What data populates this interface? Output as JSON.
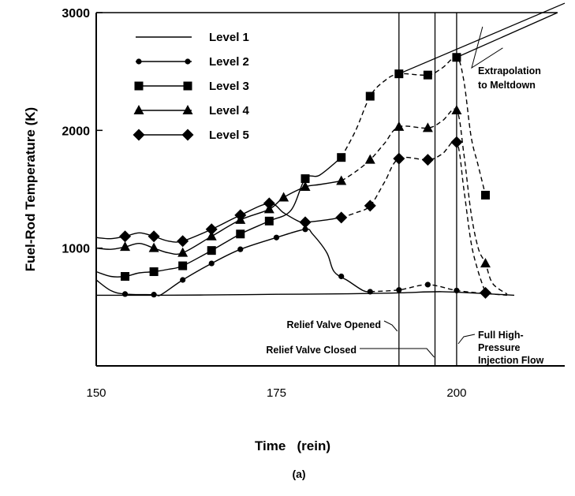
{
  "chart_data": {
    "type": "line",
    "xlabel": "Time   (rein)",
    "ylabel": "Fuel-Rod Temperature (K)",
    "caption": "(a)",
    "xlim": [
      150,
      215
    ],
    "ylim": [
      0,
      3000
    ],
    "xticks": [
      150,
      175,
      200
    ],
    "yticks": [
      1000,
      2000,
      3000
    ],
    "legend_position": "top-left",
    "grid": false,
    "series": [
      {
        "name": "Level 1",
        "marker": "none",
        "solid": [
          [
            150,
            600
          ],
          [
            158,
            600
          ],
          [
            165,
            602
          ],
          [
            175,
            608
          ],
          [
            185,
            612
          ],
          [
            192,
            620
          ],
          [
            198,
            630
          ],
          [
            205,
            610
          ],
          [
            208,
            600
          ]
        ],
        "dashed": []
      },
      {
        "name": "Level 2",
        "marker": "circle",
        "solid": [
          [
            150,
            730
          ],
          [
            152,
            640
          ],
          [
            154,
            610
          ],
          [
            158,
            605
          ],
          [
            159,
            605
          ],
          [
            162,
            730
          ],
          [
            166,
            870
          ],
          [
            170,
            990
          ],
          [
            175,
            1090
          ],
          [
            179,
            1160
          ],
          [
            180,
            1120
          ],
          [
            182,
            960
          ],
          [
            183,
            800
          ],
          [
            185,
            720
          ],
          [
            187,
            640
          ],
          [
            188,
            630
          ]
        ],
        "dashed": [
          [
            188,
            630
          ],
          [
            192,
            645
          ],
          [
            196,
            690
          ],
          [
            200,
            640
          ],
          [
            204,
            615
          ],
          [
            207,
            600
          ]
        ],
        "markers": [
          [
            154,
            610
          ],
          [
            158,
            605
          ],
          [
            162,
            730
          ],
          [
            166,
            870
          ],
          [
            170,
            990
          ],
          [
            175,
            1090
          ],
          [
            179,
            1160
          ],
          [
            184,
            760
          ],
          [
            188,
            630
          ],
          [
            192,
            645
          ],
          [
            196,
            690
          ],
          [
            200,
            640
          ],
          [
            204,
            615
          ]
        ]
      },
      {
        "name": "Level 3",
        "marker": "square",
        "solid": [
          [
            150,
            800
          ],
          [
            152,
            760
          ],
          [
            154,
            760
          ],
          [
            156,
            790
          ],
          [
            158,
            800
          ],
          [
            160,
            820
          ],
          [
            162,
            850
          ],
          [
            166,
            980
          ],
          [
            170,
            1120
          ],
          [
            174,
            1230
          ],
          [
            177,
            1320
          ],
          [
            179,
            1590
          ],
          [
            181,
            1620
          ],
          [
            184,
            1770
          ]
        ],
        "dashed": [
          [
            184,
            1770
          ],
          [
            186,
            2000
          ],
          [
            188,
            2290
          ],
          [
            190,
            2420
          ],
          [
            192,
            2480
          ],
          [
            196,
            2470
          ],
          [
            198,
            2530
          ],
          [
            200,
            2620
          ],
          [
            201,
            2420
          ],
          [
            202,
            1950
          ],
          [
            203,
            1700
          ],
          [
            204,
            1450
          ]
        ],
        "markers": [
          [
            154,
            760
          ],
          [
            158,
            800
          ],
          [
            162,
            850
          ],
          [
            166,
            980
          ],
          [
            170,
            1120
          ],
          [
            174,
            1230
          ],
          [
            179,
            1590
          ],
          [
            184,
            1770
          ],
          [
            188,
            2290
          ],
          [
            192,
            2480
          ],
          [
            196,
            2470
          ],
          [
            200,
            2620
          ],
          [
            204,
            1450
          ]
        ]
      },
      {
        "name": "Level 4",
        "marker": "triangle",
        "solid": [
          [
            150,
            1000
          ],
          [
            152,
            990
          ],
          [
            154,
            1010
          ],
          [
            156,
            1040
          ],
          [
            158,
            1000
          ],
          [
            160,
            960
          ],
          [
            162,
            960
          ],
          [
            166,
            1100
          ],
          [
            170,
            1240
          ],
          [
            174,
            1330
          ],
          [
            176,
            1430
          ],
          [
            179,
            1520
          ],
          [
            181,
            1540
          ],
          [
            184,
            1570
          ]
        ],
        "dashed": [
          [
            184,
            1570
          ],
          [
            186,
            1650
          ],
          [
            188,
            1750
          ],
          [
            190,
            1890
          ],
          [
            192,
            2030
          ],
          [
            196,
            2020
          ],
          [
            198,
            2080
          ],
          [
            200,
            2170
          ],
          [
            201,
            1800
          ],
          [
            202,
            1300
          ],
          [
            203,
            1000
          ],
          [
            204,
            870
          ],
          [
            205,
            700
          ],
          [
            207,
            610
          ]
        ],
        "markers": [
          [
            154,
            1010
          ],
          [
            158,
            1000
          ],
          [
            162,
            960
          ],
          [
            166,
            1100
          ],
          [
            170,
            1240
          ],
          [
            174,
            1330
          ],
          [
            176,
            1430
          ],
          [
            179,
            1520
          ],
          [
            184,
            1570
          ],
          [
            188,
            1750
          ],
          [
            192,
            2030
          ],
          [
            196,
            2020
          ],
          [
            200,
            2170
          ],
          [
            204,
            870
          ]
        ]
      },
      {
        "name": "Level 5",
        "marker": "diamond",
        "solid": [
          [
            150,
            1090
          ],
          [
            152,
            1080
          ],
          [
            154,
            1100
          ],
          [
            156,
            1130
          ],
          [
            158,
            1100
          ],
          [
            160,
            1060
          ],
          [
            162,
            1060
          ],
          [
            166,
            1160
          ],
          [
            170,
            1280
          ],
          [
            174,
            1380
          ],
          [
            176,
            1300
          ],
          [
            178,
            1230
          ],
          [
            179,
            1220
          ],
          [
            182,
            1240
          ],
          [
            184,
            1260
          ]
        ],
        "dashed": [
          [
            184,
            1260
          ],
          [
            186,
            1300
          ],
          [
            188,
            1360
          ],
          [
            190,
            1560
          ],
          [
            192,
            1760
          ],
          [
            196,
            1750
          ],
          [
            198,
            1800
          ],
          [
            200,
            1900
          ],
          [
            201,
            1500
          ],
          [
            202,
            1050
          ],
          [
            203,
            800
          ],
          [
            204,
            620
          ]
        ],
        "markers": [
          [
            154,
            1100
          ],
          [
            158,
            1100
          ],
          [
            162,
            1060
          ],
          [
            166,
            1160
          ],
          [
            170,
            1280
          ],
          [
            174,
            1380
          ],
          [
            179,
            1220
          ],
          [
            184,
            1260
          ],
          [
            188,
            1360
          ],
          [
            192,
            1760
          ],
          [
            196,
            1750
          ],
          [
            200,
            1900
          ],
          [
            204,
            620
          ]
        ]
      }
    ],
    "extrapolation": {
      "label": [
        "Extrapolation",
        "to Meltdown"
      ],
      "lines": [
        [
          [
            192,
            2480
          ],
          [
            215,
            3080
          ]
        ],
        [
          [
            200,
            2620
          ],
          [
            214,
            3000
          ]
        ]
      ]
    },
    "events": [
      {
        "x": 192,
        "label": [
          "Relief Valve Opened"
        ]
      },
      {
        "x": 197,
        "label": [
          "Relief Valve Closed"
        ]
      },
      {
        "x": 200,
        "label": [
          "Full High-",
          "Pressure",
          "Injection Flow"
        ]
      }
    ]
  }
}
